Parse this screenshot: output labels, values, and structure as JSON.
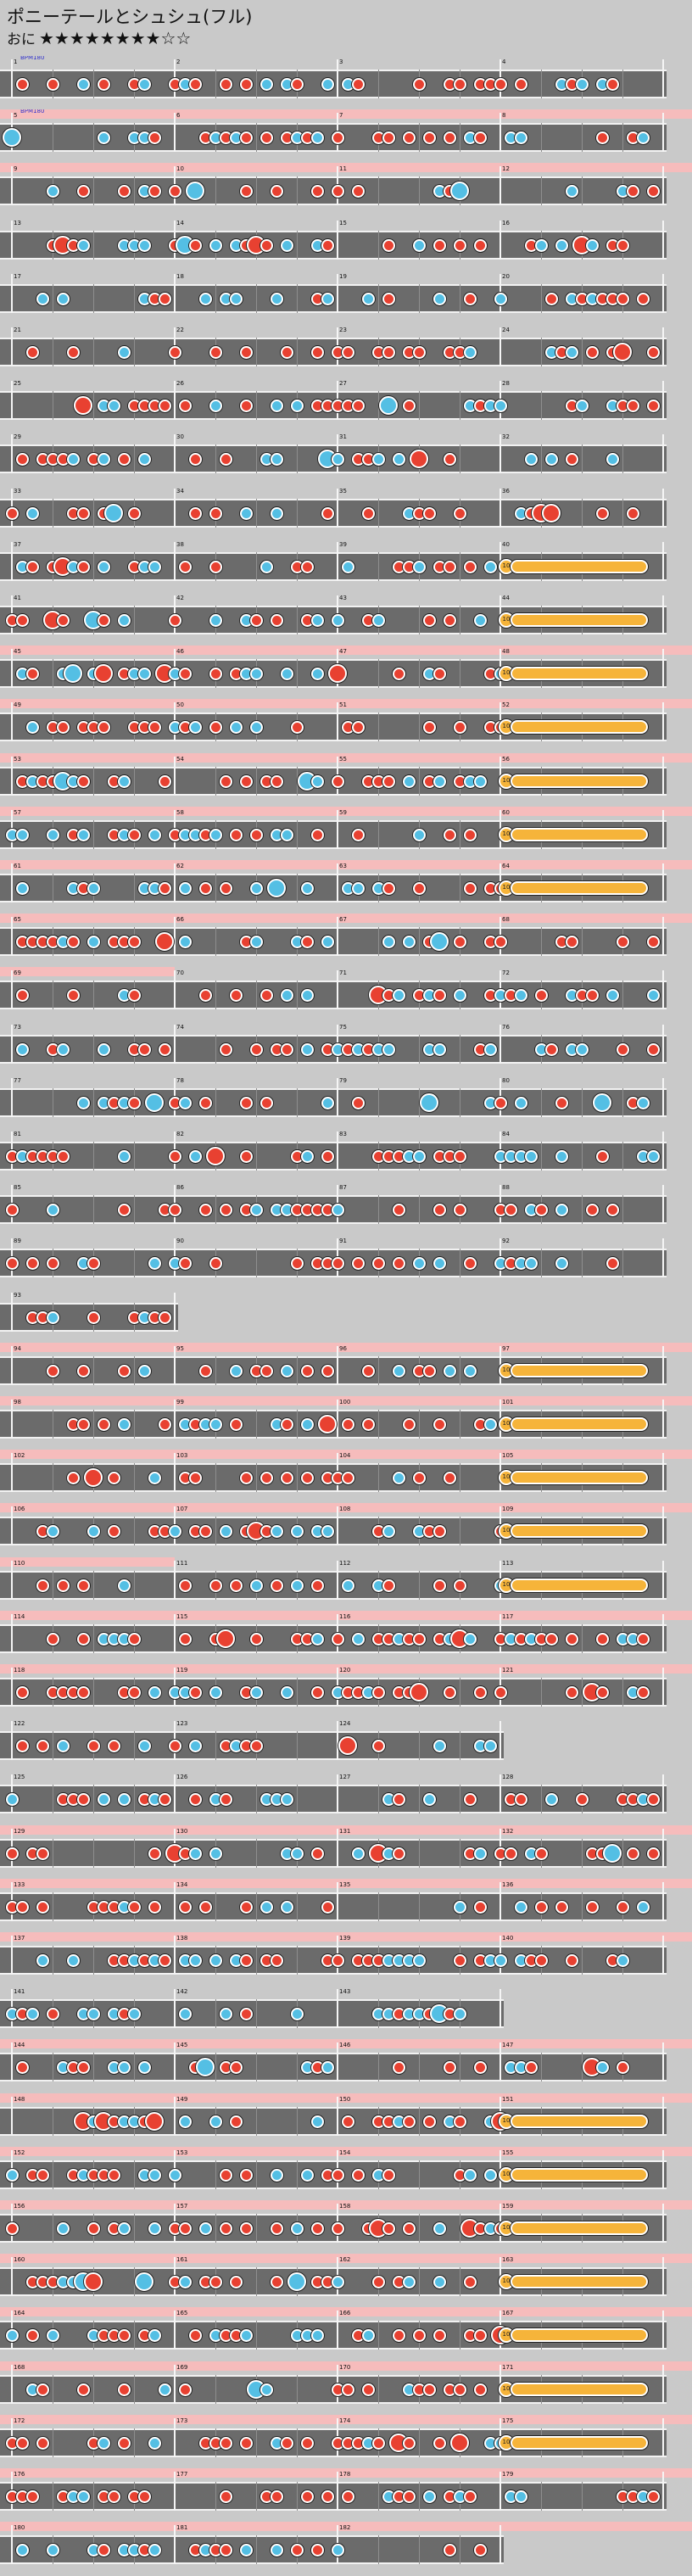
{
  "header": {
    "title": "ポニーテールとシュシュ(フル)",
    "difficulty_label": "おに",
    "stars": "★★★★★★★★☆☆"
  },
  "chart": {
    "bpm_markers": [
      "BPM180",
      "BPM180"
    ],
    "measure_numbers_shown": "1-172"
  },
  "colors": {
    "don": "#e84131",
    "ka": "#54bfe4",
    "roll": "#f6b43a",
    "gogo": "#f6bcbc",
    "lane": "#6b6b6b"
  }
}
